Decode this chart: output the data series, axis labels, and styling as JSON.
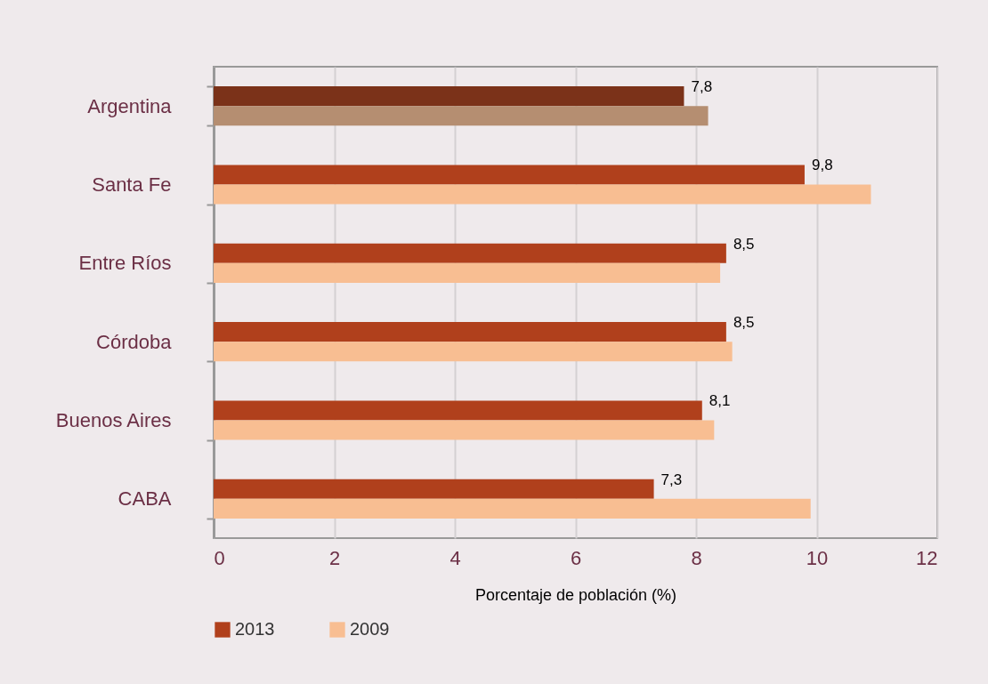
{
  "chart_data": {
    "type": "bar",
    "orientation": "horizontal",
    "xlabel": "Porcentaje de población (%)",
    "categories": [
      "Argentina",
      "Santa Fe",
      "Entre Ríos",
      "Córdoba",
      "Buenos Aires",
      "CABA"
    ],
    "series": [
      {
        "name": "2013",
        "color": "#b0401c",
        "colors": [
          "#7b3219",
          "#b0401c",
          "#b0401c",
          "#b0401c",
          "#b0401c",
          "#b0401c"
        ],
        "values": [
          7.8,
          9.8,
          8.5,
          8.5,
          8.1,
          7.3
        ],
        "value_labels": [
          "7,8",
          "9,8",
          "8,5",
          "8,5",
          "8,1",
          "7,3"
        ]
      },
      {
        "name": "2009",
        "color": "#f8be92",
        "colors": [
          "#b58e71",
          "#f8be92",
          "#f8be92",
          "#f8be92",
          "#f8be92",
          "#f8be92"
        ],
        "values": [
          8.2,
          10.9,
          8.4,
          8.6,
          8.3,
          9.9
        ]
      }
    ],
    "xlim": [
      0,
      12
    ],
    "xticks": [
      0,
      2,
      4,
      6,
      8,
      10,
      12
    ],
    "grid": "x",
    "legend": "bottom"
  }
}
